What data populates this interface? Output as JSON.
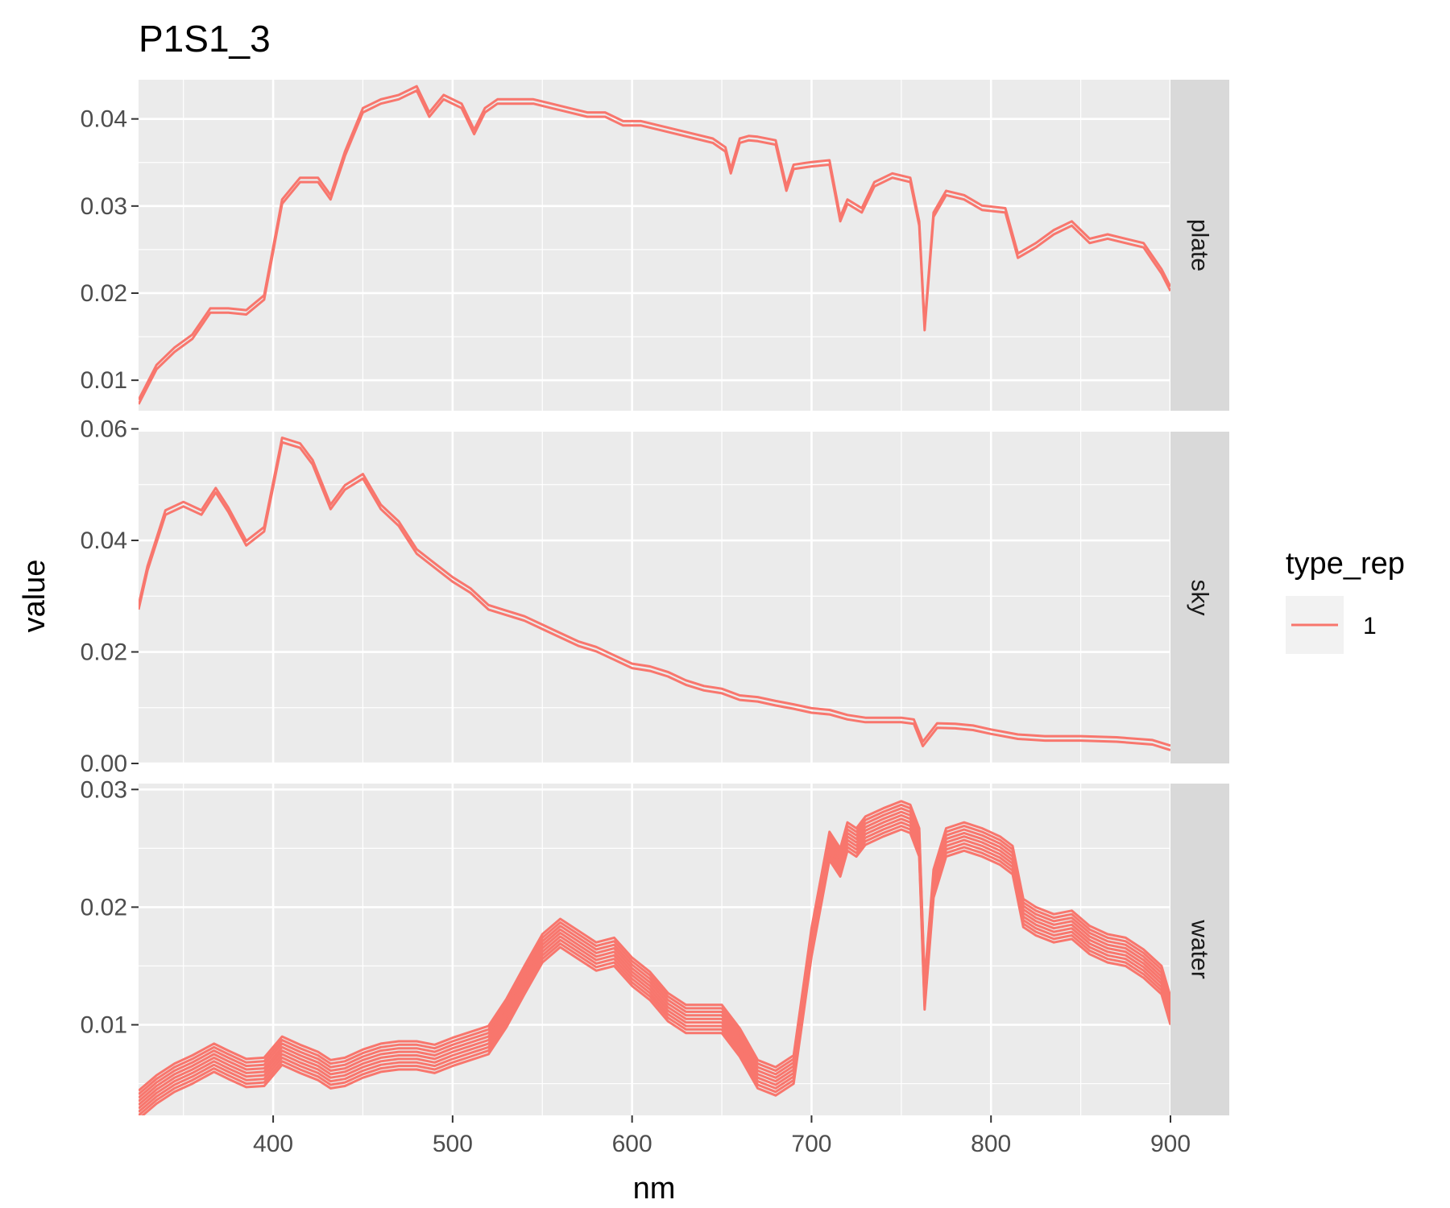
{
  "chart_data": {
    "type": "line",
    "title": "P1S1_3",
    "xlabel": "nm",
    "ylabel": "value",
    "xlim": [
      325,
      900
    ],
    "x_ticks": [
      400,
      500,
      600,
      700,
      800,
      900
    ],
    "grid": true,
    "legend": {
      "title": "type_rep",
      "position": "right",
      "entries": [
        {
          "label": "1",
          "color": "#F8766D"
        }
      ]
    },
    "line_color": "#F8766D",
    "panels": [
      {
        "name": "plate",
        "strip_label": "plate",
        "ylim": [
          0.0065,
          0.0445
        ],
        "y_ticks": [
          0.01,
          0.02,
          0.03,
          0.04
        ],
        "y_tick_labels": [
          "0.01",
          "0.02",
          "0.03",
          "0.04"
        ],
        "x": [
          325,
          335,
          345,
          355,
          365,
          375,
          385,
          395,
          400,
          405,
          415,
          425,
          432,
          440,
          450,
          460,
          470,
          480,
          487,
          495,
          505,
          512,
          518,
          525,
          535,
          545,
          555,
          565,
          575,
          585,
          595,
          605,
          615,
          625,
          635,
          645,
          652,
          655,
          660,
          665,
          670,
          680,
          686,
          690,
          700,
          710,
          716,
          720,
          728,
          735,
          745,
          755,
          760,
          763,
          768,
          775,
          785,
          795,
          808,
          815,
          825,
          835,
          845,
          855,
          865,
          875,
          885,
          890,
          895,
          900
        ],
        "series": [
          {
            "offsets": [
              -0.00025,
              0.00025
            ],
            "values": [
              0.0075,
              0.0115,
              0.0135,
              0.015,
              0.018,
              0.018,
              0.0178,
              0.0195,
              0.025,
              0.0305,
              0.033,
              0.033,
              0.031,
              0.036,
              0.041,
              0.042,
              0.0425,
              0.0435,
              0.0405,
              0.0425,
              0.0415,
              0.0385,
              0.041,
              0.042,
              0.042,
              0.042,
              0.0415,
              0.041,
              0.0405,
              0.0405,
              0.0395,
              0.0395,
              0.039,
              0.0385,
              0.038,
              0.0375,
              0.0365,
              0.034,
              0.0375,
              0.0378,
              0.0377,
              0.0373,
              0.032,
              0.0345,
              0.0348,
              0.035,
              0.0285,
              0.0305,
              0.0295,
              0.0325,
              0.0335,
              0.033,
              0.028,
              0.016,
              0.029,
              0.0315,
              0.031,
              0.0298,
              0.0295,
              0.0243,
              0.0255,
              0.027,
              0.028,
              0.026,
              0.0265,
              0.026,
              0.0255,
              0.024,
              0.0225,
              0.0205
            ]
          }
        ]
      },
      {
        "name": "sky",
        "strip_label": "sky",
        "ylim": [
          0,
          0.0595
        ],
        "y_ticks": [
          0.0,
          0.02,
          0.04,
          0.06
        ],
        "y_tick_labels": [
          "0.00",
          "0.02",
          "0.04",
          "0.06"
        ],
        "x": [
          325,
          330,
          340,
          350,
          360,
          368,
          375,
          385,
          395,
          400,
          405,
          415,
          422,
          432,
          440,
          450,
          460,
          470,
          480,
          490,
          500,
          510,
          520,
          530,
          540,
          550,
          560,
          570,
          580,
          590,
          600,
          610,
          620,
          630,
          640,
          650,
          660,
          670,
          680,
          690,
          700,
          710,
          720,
          730,
          740,
          750,
          757,
          762,
          770,
          780,
          790,
          800,
          815,
          830,
          850,
          870,
          890,
          900
        ],
        "series": [
          {
            "offsets": [
              -0.0004,
              0.0004
            ],
            "values": [
              0.028,
              0.035,
              0.045,
              0.0465,
              0.045,
              0.049,
              0.0455,
              0.0395,
              0.042,
              0.05,
              0.058,
              0.057,
              0.054,
              0.046,
              0.0495,
              0.0515,
              0.046,
              0.043,
              0.038,
              0.0355,
              0.033,
              0.031,
              0.028,
              0.027,
              0.026,
              0.0245,
              0.023,
              0.0215,
              0.0205,
              0.019,
              0.0175,
              0.017,
              0.016,
              0.0145,
              0.0135,
              0.013,
              0.0118,
              0.0115,
              0.0108,
              0.0102,
              0.0095,
              0.0092,
              0.0083,
              0.0078,
              0.0078,
              0.0078,
              0.0075,
              0.0035,
              0.0068,
              0.0067,
              0.0064,
              0.0057,
              0.0048,
              0.0045,
              0.0045,
              0.0043,
              0.0038,
              0.0028
            ]
          }
        ]
      },
      {
        "name": "water",
        "strip_label": "water",
        "ylim": [
          0.0023,
          0.0305
        ],
        "y_ticks": [
          0.01,
          0.02,
          0.03
        ],
        "y_tick_labels": [
          "0.01",
          "0.02",
          "0.03"
        ],
        "x": [
          325,
          335,
          345,
          355,
          367,
          375,
          385,
          395,
          405,
          415,
          425,
          432,
          440,
          450,
          460,
          470,
          480,
          490,
          500,
          510,
          520,
          530,
          540,
          550,
          560,
          570,
          580,
          590,
          600,
          610,
          620,
          630,
          640,
          650,
          660,
          670,
          680,
          690,
          700,
          710,
          716,
          720,
          725,
          730,
          740,
          750,
          755,
          760,
          763,
          768,
          775,
          785,
          795,
          805,
          812,
          818,
          825,
          835,
          845,
          855,
          865,
          875,
          885,
          895,
          900
        ],
        "series": [
          {
            "offsets": [
              -0.0012,
              -0.0009,
              -0.0006,
              -0.0003,
              0.0,
              0.0003,
              0.0006,
              0.0009,
              0.0012
            ],
            "values": [
              0.0032,
              0.0045,
              0.0055,
              0.0062,
              0.0072,
              0.0066,
              0.0059,
              0.006,
              0.0078,
              0.0071,
              0.0065,
              0.0058,
              0.006,
              0.0067,
              0.0072,
              0.0074,
              0.0074,
              0.0071,
              0.0077,
              0.0082,
              0.0087,
              0.011,
              0.0138,
              0.0165,
              0.0178,
              0.0168,
              0.0158,
              0.0162,
              0.0145,
              0.0133,
              0.0115,
              0.0105,
              0.0105,
              0.0105,
              0.0085,
              0.0058,
              0.0052,
              0.0062,
              0.017,
              0.0252,
              0.0238,
              0.026,
              0.0255,
              0.0265,
              0.0272,
              0.0278,
              0.0275,
              0.0255,
              0.0125,
              0.022,
              0.0255,
              0.026,
              0.0255,
              0.0248,
              0.024,
              0.0195,
              0.0188,
              0.0182,
              0.0185,
              0.0172,
              0.0165,
              0.0162,
              0.0152,
              0.0138,
              0.0112
            ]
          }
        ]
      }
    ]
  }
}
